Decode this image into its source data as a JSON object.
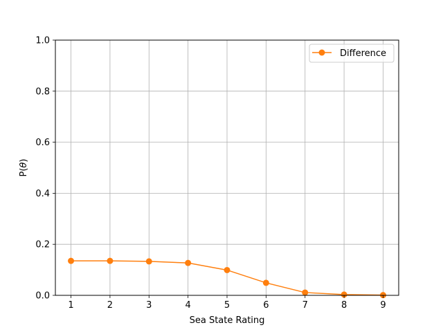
{
  "chart_data": {
    "type": "line",
    "title": "",
    "xlabel": "Sea State Rating",
    "ylabel_prefix": "P(",
    "ylabel_symbol": "θ",
    "ylabel_suffix": ")",
    "x": [
      1,
      2,
      3,
      4,
      5,
      6,
      7,
      8,
      9
    ],
    "xlim": [
      0.6,
      9.4
    ],
    "ylim": [
      0.0,
      1.0
    ],
    "x_ticks": [
      1,
      2,
      3,
      4,
      5,
      6,
      7,
      8,
      9
    ],
    "y_ticks": [
      0.0,
      0.2,
      0.4,
      0.6,
      0.8,
      1.0
    ],
    "grid": true,
    "legend_position": "top-right",
    "series": [
      {
        "name": "Difference",
        "color": "#ff7f0e",
        "marker": "circle",
        "values": [
          0.135,
          0.135,
          0.133,
          0.127,
          0.099,
          0.049,
          0.011,
          0.003,
          0.001
        ]
      }
    ]
  }
}
